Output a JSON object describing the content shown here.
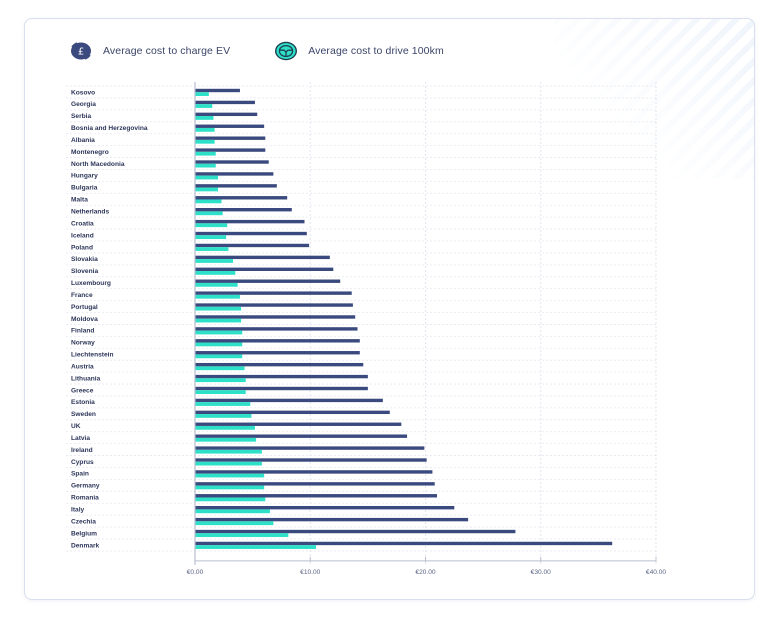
{
  "legend": {
    "charge": {
      "label": "Average cost to charge EV",
      "icon": "pound-coin-icon",
      "color": "#3b4a7e"
    },
    "drive": {
      "label": "Average cost to drive 100km",
      "icon": "steering-wheel-icon",
      "color": "#2ee0c8"
    }
  },
  "chart_data": {
    "type": "bar",
    "orientation": "horizontal",
    "title": "",
    "xlabel": "",
    "ylabel": "",
    "xlim": [
      0,
      40
    ],
    "grid": true,
    "legend_position": "top-left",
    "x_ticks": [
      0,
      10,
      20,
      30,
      40
    ],
    "x_tick_labels": [
      "€0.00",
      "€10.00",
      "€20.00",
      "€30.00",
      "€40.00"
    ],
    "categories": [
      "Kosovo",
      "Georgia",
      "Serbia",
      "Bosnia and Herzegovina",
      "Albania",
      "Montenegro",
      "North Macedonia",
      "Hungary",
      "Bulgaria",
      "Malta",
      "Netherlands",
      "Croatia",
      "Iceland",
      "Poland",
      "Slovakia",
      "Slovenia",
      "Luxembourg",
      "France",
      "Portugal",
      "Moldova",
      "Finland",
      "Norway",
      "Liechtenstein",
      "Austria",
      "Lithuania",
      "Greece",
      "Estonia",
      "Sweden",
      "UK",
      "Latvia",
      "Ireland",
      "Cyprus",
      "Spain",
      "Germany",
      "Romania",
      "Italy",
      "Czechia",
      "Belgium",
      "Denmark"
    ],
    "series": [
      {
        "name": "Average cost to charge EV",
        "color": "#3b4a7e",
        "values": [
          3.9,
          5.2,
          5.4,
          6.0,
          6.1,
          6.1,
          6.4,
          6.8,
          7.1,
          8.0,
          8.4,
          9.5,
          9.7,
          9.9,
          11.7,
          12.0,
          12.6,
          13.6,
          13.7,
          13.9,
          14.1,
          14.3,
          14.3,
          14.6,
          15.0,
          15.0,
          16.3,
          16.9,
          17.9,
          18.4,
          19.9,
          20.1,
          20.6,
          20.8,
          21.0,
          22.5,
          23.7,
          27.8,
          36.2
        ]
      },
      {
        "name": "Average cost to drive 100km",
        "color": "#2ee0c8",
        "values": [
          1.2,
          1.5,
          1.6,
          1.7,
          1.7,
          1.8,
          1.8,
          2.0,
          2.0,
          2.3,
          2.4,
          2.8,
          2.7,
          2.9,
          3.3,
          3.5,
          3.7,
          3.9,
          4.0,
          4.0,
          4.1,
          4.1,
          4.1,
          4.3,
          4.4,
          4.4,
          4.8,
          4.9,
          5.2,
          5.3,
          5.8,
          5.8,
          6.0,
          6.0,
          6.1,
          6.5,
          6.8,
          8.1,
          10.5
        ]
      }
    ]
  }
}
